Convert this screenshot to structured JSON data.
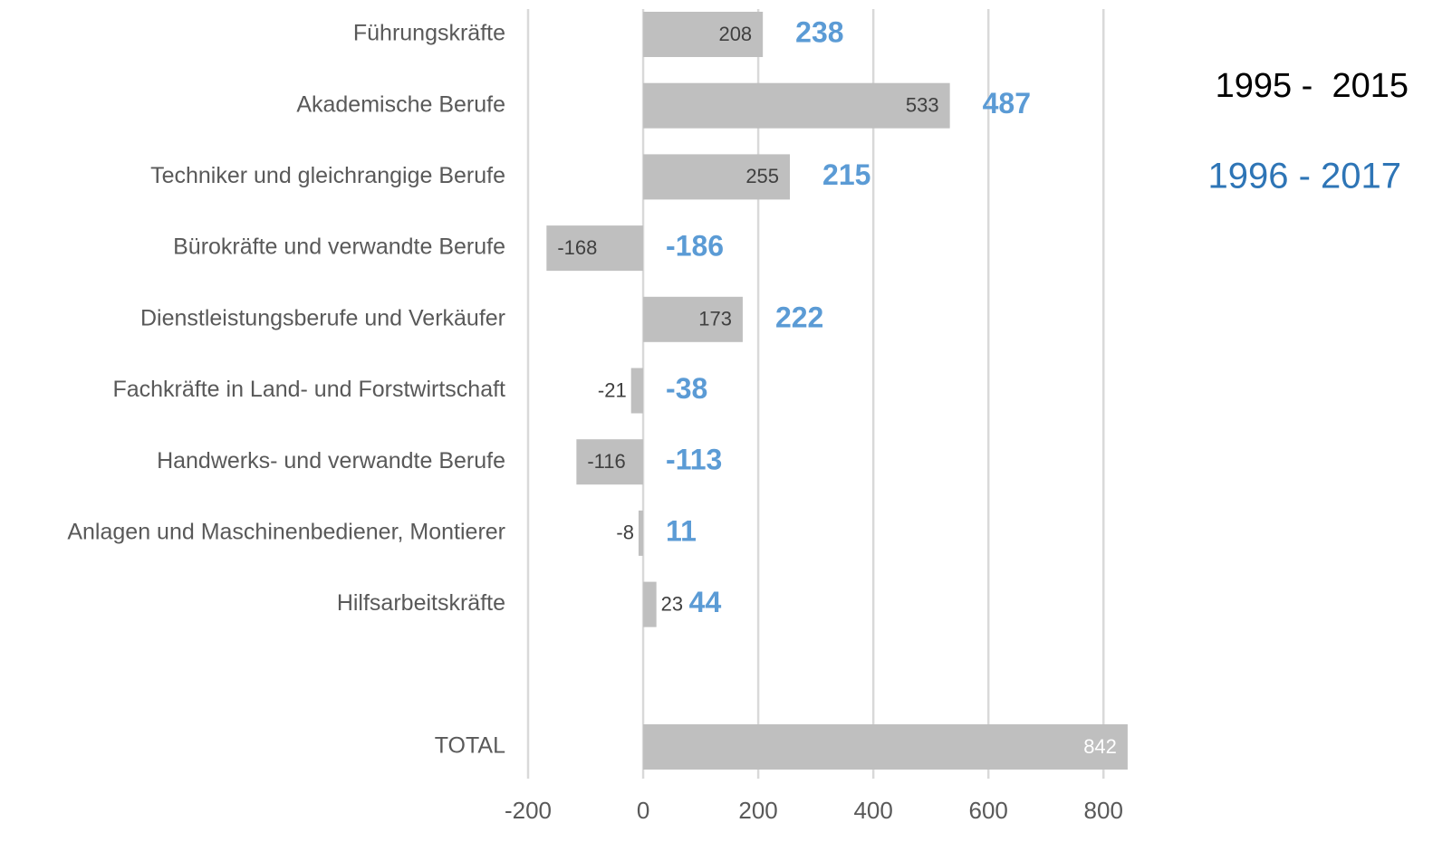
{
  "chart_data": {
    "type": "bar",
    "orientation": "horizontal",
    "categories": [
      "Führungskräfte",
      "Akademische Berufe",
      "Techniker und gleichrangige Berufe",
      "Bürokräfte und verwandte Berufe",
      "Dienstleistungsberufe und Verkäufer",
      "Fachkräfte in Land- und Forstwirtschaft",
      "Handwerks- und verwandte Berufe",
      "Anlagen und Maschinenbediener, Montierer",
      "Hilfsarbeitskräfte",
      null,
      "TOTAL"
    ],
    "series": [
      {
        "name": "1995 -  2015",
        "color": "#bfbfbf",
        "values": [
          208,
          533,
          255,
          -168,
          173,
          -21,
          -116,
          -8,
          23,
          null,
          842
        ]
      },
      {
        "name": "1996 - 2017",
        "color": "#5b9bd5",
        "values": [
          238,
          487,
          215,
          -186,
          222,
          -38,
          -113,
          11,
          44,
          null,
          null
        ]
      }
    ],
    "xlim": [
      -200,
      850
    ],
    "xticks": [
      -200,
      0,
      200,
      400,
      600,
      800
    ],
    "grid": true
  }
}
